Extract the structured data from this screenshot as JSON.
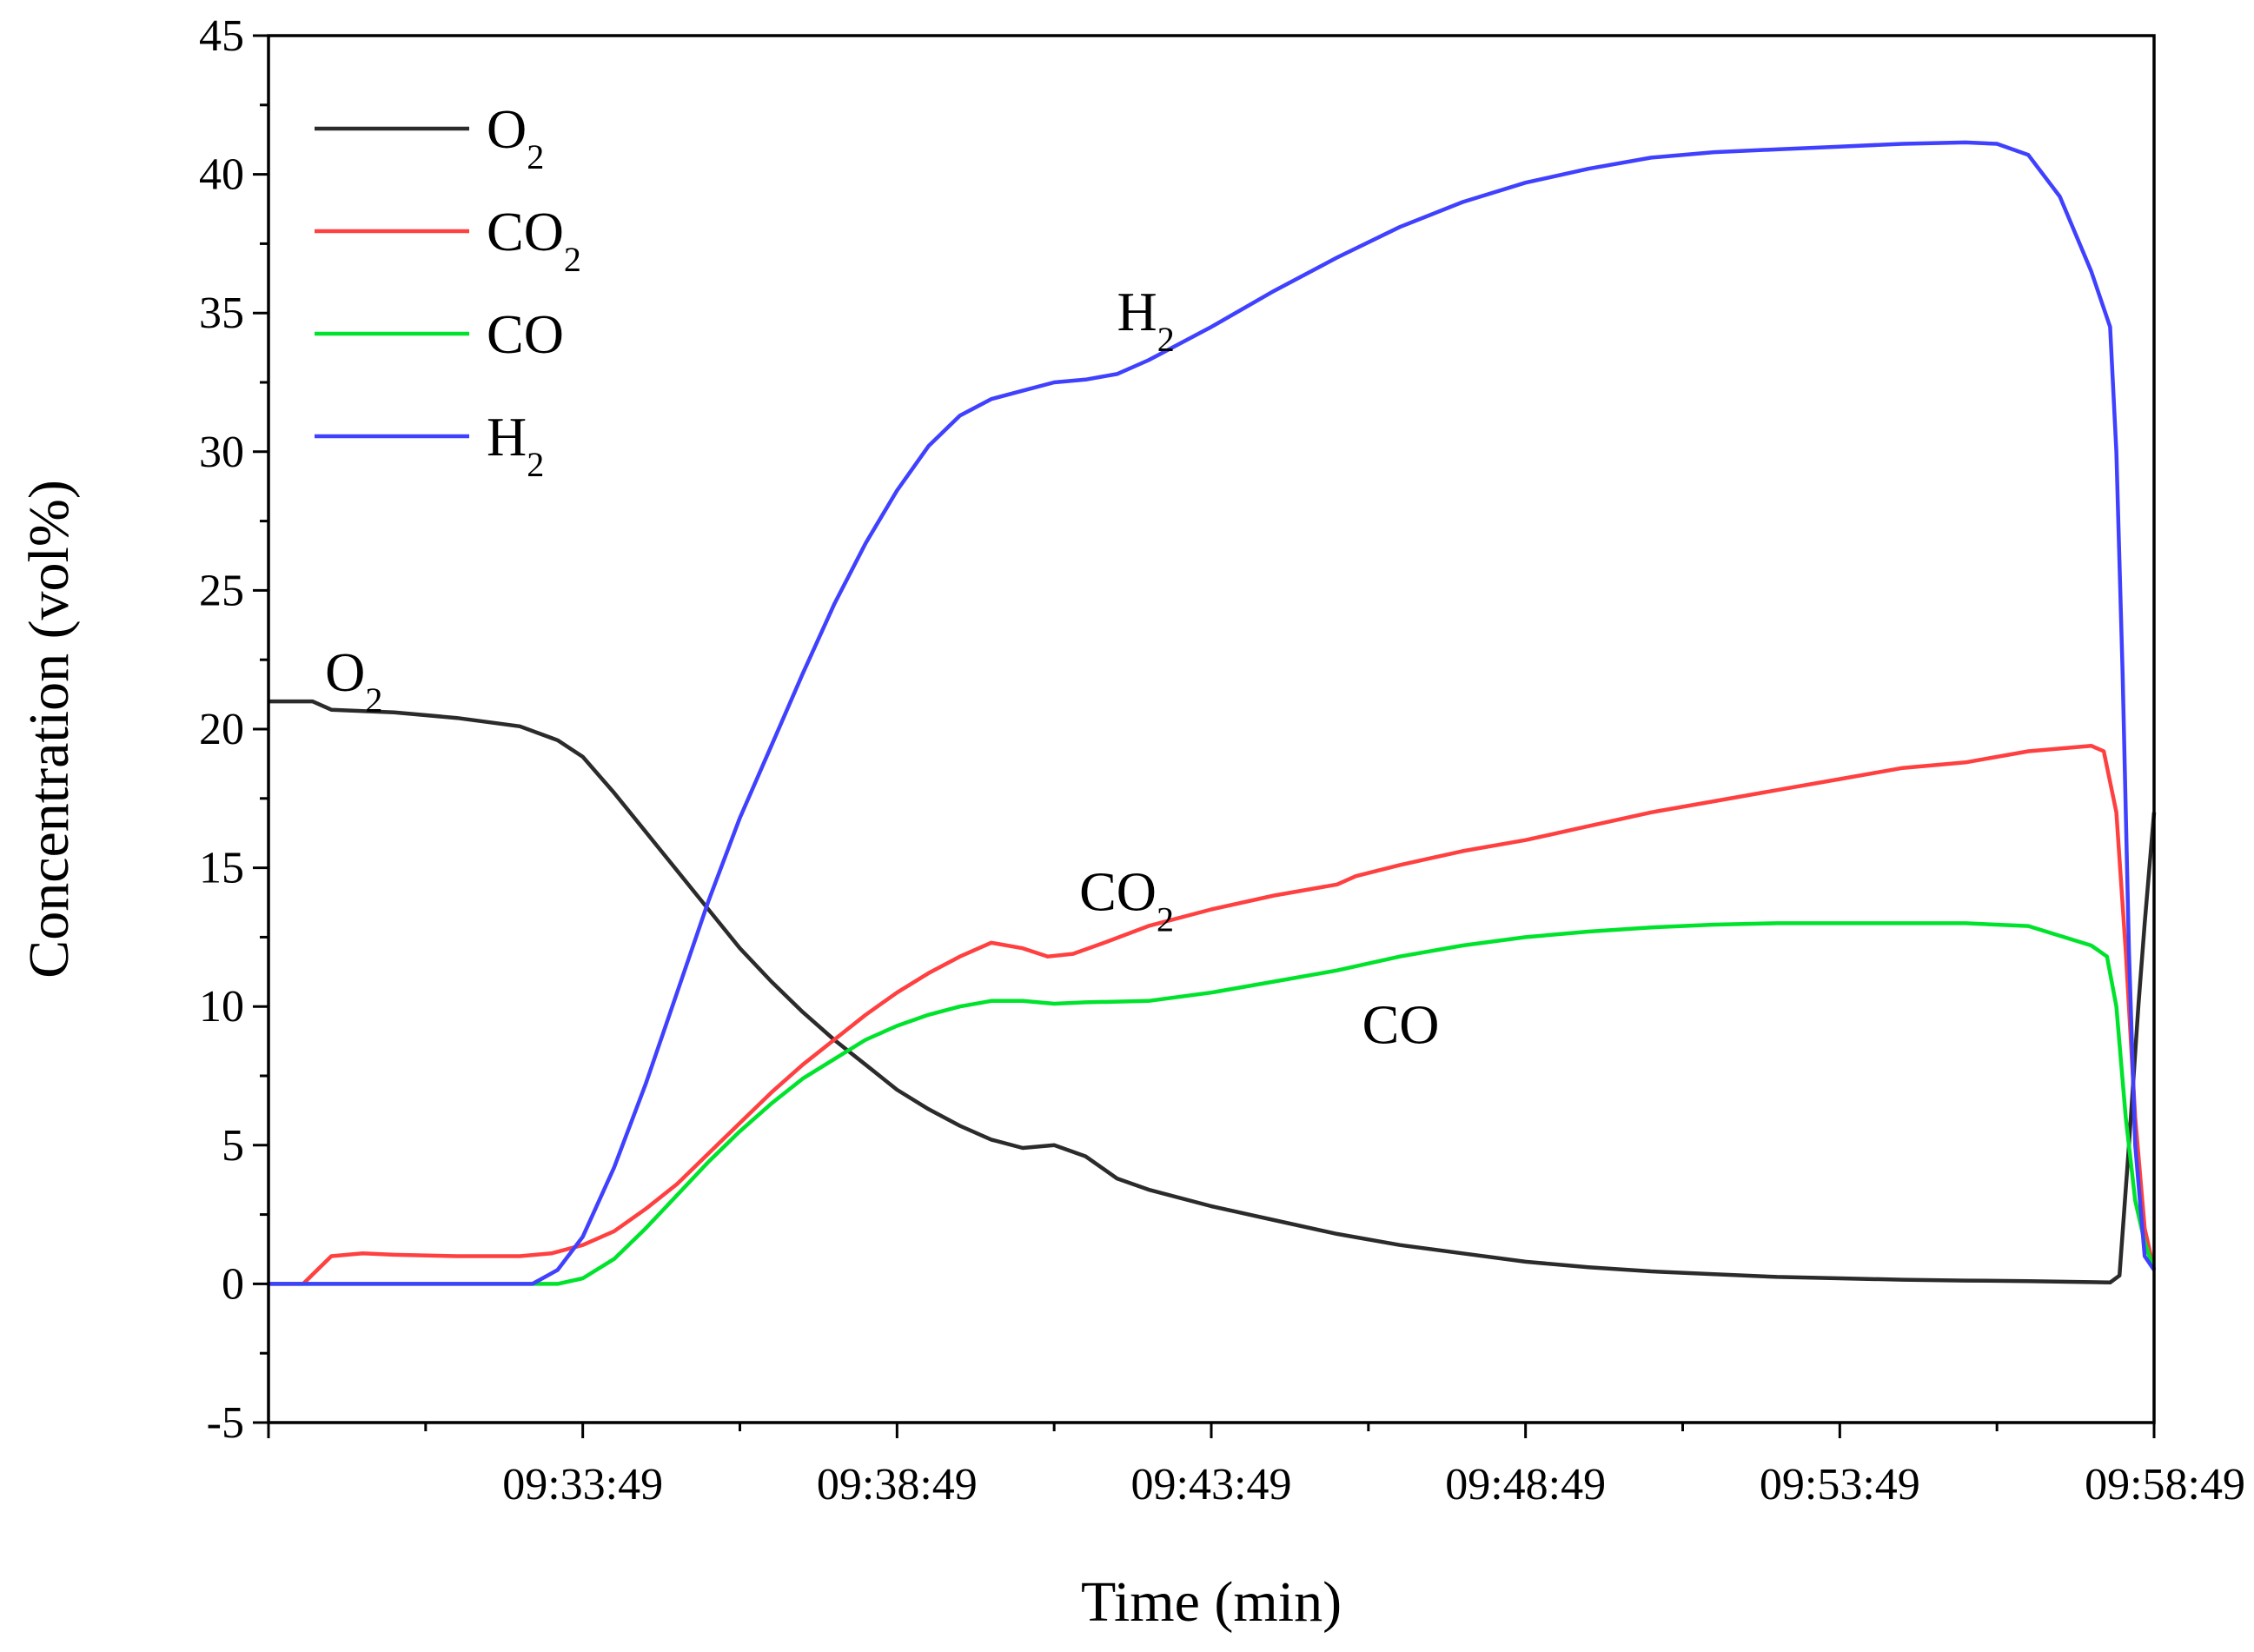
{
  "chart_data": {
    "type": "line",
    "title": "",
    "xlabel": "Time (min)",
    "ylabel": "Concentration (vol%)",
    "x_unit": "minutes elapsed (axis start = 09:28:49)",
    "xlim": [
      0,
      30
    ],
    "ylim": [
      -5,
      45
    ],
    "grid": false,
    "legend_position": "top-left",
    "y_ticks": [
      "-5",
      "0",
      "5",
      "10",
      "15",
      "20",
      "25",
      "30",
      "35",
      "40",
      "45"
    ],
    "x_tick_labels": [
      {
        "x": 5,
        "label": "09:33:49"
      },
      {
        "x": 10,
        "label": "09:38:49"
      },
      {
        "x": 15,
        "label": "09:43:49"
      },
      {
        "x": 20,
        "label": "09:48:49"
      },
      {
        "x": 25,
        "label": "09:53:49"
      },
      {
        "x": 30,
        "label": "09:58:49"
      }
    ],
    "series": [
      {
        "name": "O",
        "sub": "2",
        "color": "#2b2b2b",
        "points": [
          [
            0,
            21
          ],
          [
            0.7,
            21
          ],
          [
            1,
            20.7
          ],
          [
            2,
            20.6
          ],
          [
            3,
            20.4
          ],
          [
            4,
            20.1
          ],
          [
            4.6,
            19.6
          ],
          [
            5,
            19
          ],
          [
            5.5,
            17.7
          ],
          [
            6,
            16.3
          ],
          [
            6.5,
            14.9
          ],
          [
            7,
            13.5
          ],
          [
            7.5,
            12.1
          ],
          [
            8,
            10.9
          ],
          [
            8.5,
            9.8
          ],
          [
            9,
            8.8
          ],
          [
            9.5,
            7.9
          ],
          [
            10,
            7
          ],
          [
            10.5,
            6.3
          ],
          [
            11,
            5.7
          ],
          [
            11.5,
            5.2
          ],
          [
            12,
            4.9
          ],
          [
            12.5,
            5
          ],
          [
            13,
            4.6
          ],
          [
            13.5,
            3.8
          ],
          [
            14,
            3.4
          ],
          [
            15,
            2.8
          ],
          [
            16,
            2.3
          ],
          [
            17,
            1.8
          ],
          [
            18,
            1.4
          ],
          [
            19,
            1.1
          ],
          [
            20,
            0.8
          ],
          [
            21,
            0.6
          ],
          [
            22,
            0.45
          ],
          [
            23,
            0.35
          ],
          [
            24,
            0.25
          ],
          [
            25,
            0.2
          ],
          [
            26,
            0.15
          ],
          [
            27,
            0.12
          ],
          [
            28,
            0.1
          ],
          [
            29.3,
            0.05
          ],
          [
            29.45,
            0.3
          ],
          [
            29.6,
            5
          ],
          [
            29.75,
            10
          ],
          [
            29.85,
            13
          ],
          [
            30,
            17
          ]
        ]
      },
      {
        "name": "CO",
        "sub": "2",
        "color": "#ff4040",
        "points": [
          [
            0,
            0
          ],
          [
            0.55,
            0
          ],
          [
            1,
            1
          ],
          [
            1.5,
            1.1
          ],
          [
            2,
            1.05
          ],
          [
            3,
            1
          ],
          [
            4,
            1
          ],
          [
            4.5,
            1.1
          ],
          [
            5,
            1.4
          ],
          [
            5.5,
            1.9
          ],
          [
            6,
            2.7
          ],
          [
            6.5,
            3.6
          ],
          [
            7,
            4.7
          ],
          [
            7.5,
            5.8
          ],
          [
            8,
            6.9
          ],
          [
            8.5,
            7.9
          ],
          [
            9,
            8.8
          ],
          [
            9.5,
            9.7
          ],
          [
            10,
            10.5
          ],
          [
            10.5,
            11.2
          ],
          [
            11,
            11.8
          ],
          [
            11.5,
            12.3
          ],
          [
            12,
            12.1
          ],
          [
            12.4,
            11.8
          ],
          [
            12.8,
            11.9
          ],
          [
            13.3,
            12.3
          ],
          [
            14,
            12.9
          ],
          [
            15,
            13.5
          ],
          [
            16,
            14
          ],
          [
            17,
            14.4
          ],
          [
            17.3,
            14.7
          ],
          [
            18,
            15.1
          ],
          [
            19,
            15.6
          ],
          [
            20,
            16
          ],
          [
            21,
            16.5
          ],
          [
            22,
            17
          ],
          [
            23,
            17.4
          ],
          [
            24,
            17.8
          ],
          [
            25,
            18.2
          ],
          [
            26,
            18.6
          ],
          [
            27,
            18.8
          ],
          [
            28,
            19.2
          ],
          [
            29,
            19.4
          ],
          [
            29.2,
            19.2
          ],
          [
            29.4,
            17
          ],
          [
            29.55,
            12
          ],
          [
            29.7,
            6
          ],
          [
            29.85,
            2
          ],
          [
            30,
            0.5
          ]
        ]
      },
      {
        "name": "CO",
        "sub": "",
        "color": "#00e32c",
        "points": [
          [
            0,
            0
          ],
          [
            4.6,
            0
          ],
          [
            5,
            0.2
          ],
          [
            5.5,
            0.9
          ],
          [
            6,
            2
          ],
          [
            6.5,
            3.2
          ],
          [
            7,
            4.4
          ],
          [
            7.5,
            5.5
          ],
          [
            8,
            6.5
          ],
          [
            8.5,
            7.4
          ],
          [
            9,
            8.1
          ],
          [
            9.5,
            8.8
          ],
          [
            10,
            9.3
          ],
          [
            10.5,
            9.7
          ],
          [
            11,
            10
          ],
          [
            11.5,
            10.2
          ],
          [
            12,
            10.2
          ],
          [
            12.5,
            10.1
          ],
          [
            13,
            10.15
          ],
          [
            14,
            10.2
          ],
          [
            15,
            10.5
          ],
          [
            16,
            10.9
          ],
          [
            17,
            11.3
          ],
          [
            18,
            11.8
          ],
          [
            19,
            12.2
          ],
          [
            20,
            12.5
          ],
          [
            21,
            12.7
          ],
          [
            22,
            12.85
          ],
          [
            23,
            12.95
          ],
          [
            24,
            13
          ],
          [
            25,
            13
          ],
          [
            26,
            13
          ],
          [
            27,
            13
          ],
          [
            28,
            12.9
          ],
          [
            29,
            12.2
          ],
          [
            29.25,
            11.8
          ],
          [
            29.4,
            10
          ],
          [
            29.55,
            6
          ],
          [
            29.7,
            3
          ],
          [
            29.85,
            1.5
          ],
          [
            30,
            0.5
          ]
        ]
      },
      {
        "name": "H",
        "sub": "2",
        "color": "#4040ff",
        "points": [
          [
            0,
            0
          ],
          [
            4.2,
            0
          ],
          [
            4.6,
            0.5
          ],
          [
            5,
            1.7
          ],
          [
            5.5,
            4.2
          ],
          [
            6,
            7.2
          ],
          [
            6.5,
            10.5
          ],
          [
            7,
            13.8
          ],
          [
            7.5,
            16.8
          ],
          [
            8,
            19.4
          ],
          [
            8.5,
            22
          ],
          [
            9,
            24.5
          ],
          [
            9.5,
            26.7
          ],
          [
            10,
            28.6
          ],
          [
            10.5,
            30.2
          ],
          [
            11,
            31.3
          ],
          [
            11.5,
            31.9
          ],
          [
            12,
            32.2
          ],
          [
            12.5,
            32.5
          ],
          [
            13,
            32.6
          ],
          [
            13.5,
            32.8
          ],
          [
            14,
            33.3
          ],
          [
            15,
            34.5
          ],
          [
            16,
            35.8
          ],
          [
            17,
            37
          ],
          [
            18,
            38.1
          ],
          [
            19,
            39
          ],
          [
            20,
            39.7
          ],
          [
            21,
            40.2
          ],
          [
            22,
            40.6
          ],
          [
            23,
            40.8
          ],
          [
            24,
            40.9
          ],
          [
            25,
            41
          ],
          [
            26,
            41.1
          ],
          [
            27,
            41.15
          ],
          [
            27.5,
            41.1
          ],
          [
            28,
            40.7
          ],
          [
            28.5,
            39.2
          ],
          [
            29,
            36.5
          ],
          [
            29.3,
            34.5
          ],
          [
            29.4,
            30
          ],
          [
            29.5,
            22
          ],
          [
            29.6,
            12
          ],
          [
            29.7,
            5
          ],
          [
            29.85,
            1
          ],
          [
            30,
            0.5
          ]
        ]
      }
    ],
    "annotations": [
      {
        "name": "O",
        "sub": "2",
        "x": 0.9,
        "y": 22
      },
      {
        "name": "CO",
        "sub": "2",
        "x": 12.9,
        "y": 14.1
      },
      {
        "name": "CO",
        "sub": "",
        "x": 17.4,
        "y": 9.3
      },
      {
        "name": "H",
        "sub": "2",
        "x": 13.5,
        "y": 35
      }
    ]
  }
}
